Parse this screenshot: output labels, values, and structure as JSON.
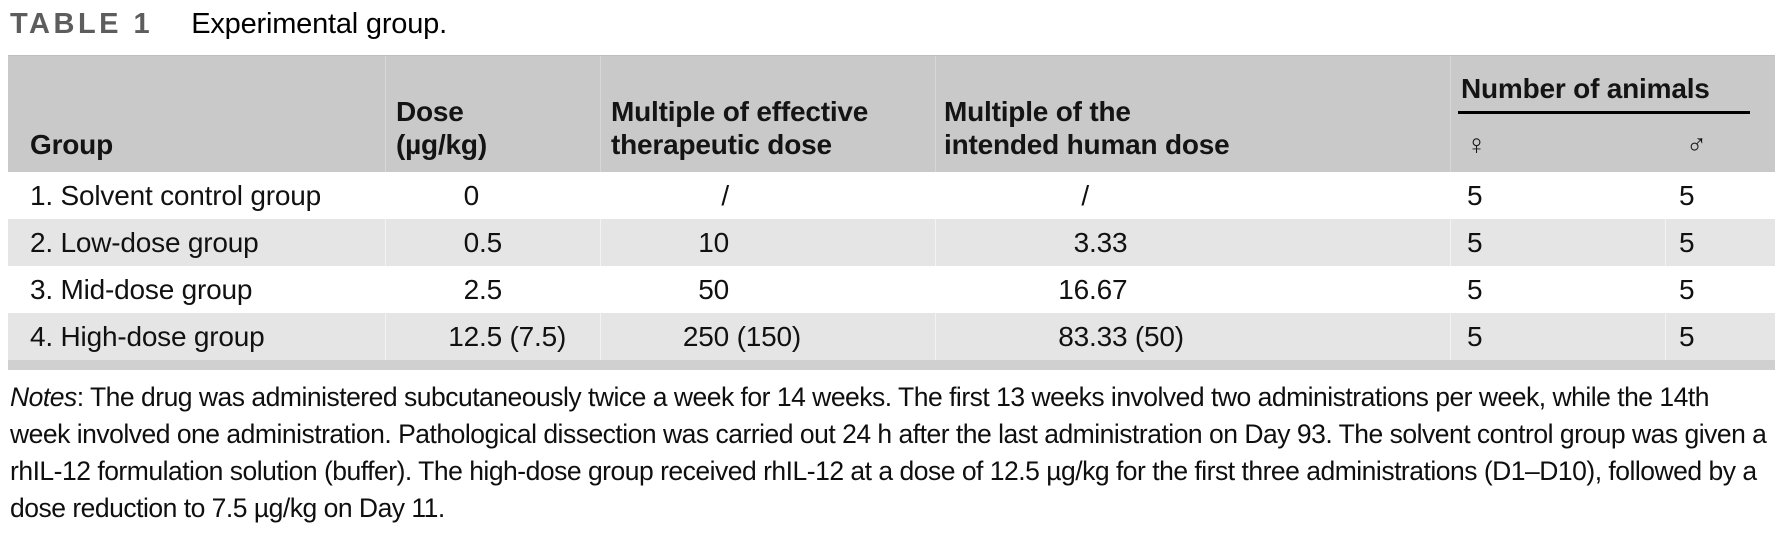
{
  "caption": {
    "label": "TABLE 1",
    "title": "Experimental group."
  },
  "table": {
    "headers": {
      "group": "Group",
      "dose": [
        "Dose",
        "(µg/kg)"
      ],
      "multiple_effective": [
        "Multiple of effective",
        "therapeutic dose"
      ],
      "multiple_human": [
        "Multiple of the",
        "intended human dose"
      ],
      "number_of_animals": "Number of animals",
      "female_symbol": "♀",
      "male_symbol": "♂"
    },
    "rows": [
      {
        "group": "1. Solvent control group",
        "dose": "0",
        "mult_eff": "/",
        "mult_human": "/",
        "female": "5",
        "male": "5"
      },
      {
        "group": "2. Low-dose group",
        "dose": "0.5",
        "mult_eff": "10",
        "mult_human": "3.33",
        "female": "5",
        "male": "5"
      },
      {
        "group": "3. Mid-dose group",
        "dose": "2.5",
        "mult_eff": "50",
        "mult_human": "16.67",
        "female": "5",
        "male": "5"
      },
      {
        "group": "4. High-dose group",
        "dose": "12.5 (7.5)",
        "mult_eff": "250 (150)",
        "mult_human": "83.33 (50)",
        "female": "5",
        "male": "5"
      }
    ]
  },
  "notes": {
    "label": "Notes",
    "text": ": The drug was administered subcutaneously twice a week for 14 weeks. The first 13 weeks involved two administrations per week, while the 14th week involved one administration. Pathological dissection was carried out 24 h after the last administration on Day 93. The solvent control group was given a rhIL-12 formulation solution (buffer). The high-dose group received rhIL-12 at a dose of 12.5 µg/kg for the first three administrations (D1–D10), followed by a dose reduction to 7.5 µg/kg on Day 11."
  },
  "colors": {
    "header_bg": "#c9c9c9",
    "row_alt_bg": "#e5e5e5",
    "bottom_rule": "#d0d0d0",
    "caption_label": "#5d5d5d"
  }
}
